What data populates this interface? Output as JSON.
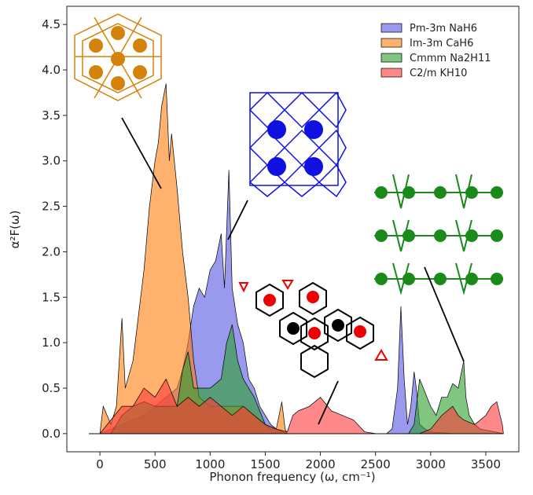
{
  "chart_data": {
    "type": "area",
    "xlabel": "Phonon frequency (ω, cm⁻¹)",
    "ylabel": "α²F(ω)",
    "xlim": [
      -300,
      3800
    ],
    "ylim": [
      -0.2,
      4.7
    ],
    "xticks": [
      0,
      500,
      1000,
      1500,
      2000,
      2500,
      3000,
      3500
    ],
    "yticks": [
      {
        "value": 0,
        "label": "0.0"
      },
      0.5,
      {
        "value": 1,
        "label": "1.0"
      },
      1.5,
      {
        "value": 2,
        "label": "2.0"
      },
      2.5,
      {
        "value": 3,
        "label": "3.0"
      },
      3.5,
      {
        "value": 4,
        "label": "4.0"
      },
      4.5
    ],
    "legend": "upper right",
    "series": [
      {
        "name": "Pm-3m NaH6",
        "color": "#5555e3",
        "x": [
          -100,
          0,
          100,
          200,
          300,
          400,
          500,
          600,
          700,
          750,
          800,
          850,
          900,
          950,
          1000,
          1050,
          1100,
          1130,
          1170,
          1200,
          1250,
          1300,
          1350,
          1400,
          1450,
          1500,
          1550,
          1600,
          1650,
          1700,
          2600,
          2650,
          2700,
          2730,
          2760,
          2790,
          2820,
          2850,
          2870,
          2900,
          2950,
          3000,
          3100,
          3200,
          3660
        ],
        "values": [
          0,
          0,
          0.05,
          0.1,
          0.15,
          0.2,
          0.3,
          0.4,
          0.5,
          0.7,
          1.0,
          1.4,
          1.6,
          1.5,
          1.8,
          1.9,
          2.2,
          1.6,
          2.9,
          1.6,
          1.2,
          1.0,
          0.6,
          0.5,
          0.3,
          0.2,
          0.1,
          0.05,
          0,
          0,
          0,
          0.05,
          0.5,
          1.4,
          0.6,
          0.1,
          0.3,
          0.68,
          0.5,
          0.1,
          0.05,
          0.02,
          0.01,
          0,
          0
        ]
      },
      {
        "name": "Im-3m CaH6",
        "color": "#ff7f0e",
        "x": [
          -100,
          0,
          30,
          100,
          150,
          200,
          230,
          300,
          350,
          400,
          450,
          500,
          530,
          560,
          600,
          630,
          650,
          700,
          750,
          800,
          850,
          900,
          1000,
          1100,
          1200,
          1300,
          1400,
          1500,
          1550,
          1600,
          1650,
          1680,
          1700,
          1750
        ],
        "values": [
          0,
          0,
          0.3,
          0.1,
          0.3,
          1.27,
          0.5,
          0.8,
          1.3,
          1.8,
          2.5,
          3.0,
          3.2,
          3.6,
          3.85,
          3.0,
          3.3,
          2.7,
          2.0,
          1.5,
          0.8,
          0.4,
          0.3,
          0.3,
          0.3,
          0.3,
          0.2,
          0.1,
          0.05,
          0.05,
          0.35,
          0.05,
          0,
          0
        ]
      },
      {
        "name": "Cmmm Na2H11",
        "color": "#2ca02c",
        "x": [
          -100,
          100,
          200,
          300,
          400,
          500,
          600,
          700,
          750,
          800,
          850,
          900,
          1000,
          1100,
          1150,
          1200,
          1250,
          1300,
          1350,
          1400,
          1500,
          1600,
          1700,
          2800,
          2850,
          2900,
          3000,
          3050,
          3100,
          3150,
          3200,
          3250,
          3300,
          3320,
          3350,
          3400,
          3450,
          3660
        ],
        "values": [
          0,
          0,
          0.2,
          0.3,
          0.35,
          0.3,
          0.3,
          0.3,
          0.7,
          0.9,
          0.5,
          0.5,
          0.5,
          0.6,
          1.0,
          1.2,
          0.8,
          0.6,
          0.5,
          0.4,
          0.1,
          0.05,
          0,
          0,
          0.1,
          0.6,
          0.3,
          0.2,
          0.4,
          0.4,
          0.55,
          0.5,
          0.8,
          0.4,
          0.2,
          0.1,
          0.05,
          0
        ]
      },
      {
        "name": "C2/m KH10",
        "color": "#ff3939",
        "x": [
          -100,
          0,
          100,
          200,
          300,
          400,
          500,
          600,
          700,
          800,
          900,
          1000,
          1100,
          1200,
          1300,
          1400,
          1500,
          1600,
          1700,
          1750,
          1800,
          1900,
          2000,
          2100,
          2200,
          2300,
          2400,
          2500,
          2900,
          3000,
          3100,
          3200,
          3250,
          3300,
          3400,
          3500,
          3550,
          3600,
          3650,
          3660
        ],
        "values": [
          0,
          0,
          0.15,
          0.3,
          0.3,
          0.5,
          0.4,
          0.6,
          0.3,
          0.4,
          0.3,
          0.4,
          0.3,
          0.2,
          0.3,
          0.2,
          0.1,
          0.05,
          0.02,
          0.2,
          0.25,
          0.3,
          0.4,
          0.25,
          0.2,
          0.15,
          0.02,
          0,
          0,
          0.05,
          0.2,
          0.3,
          0.2,
          0.15,
          0.1,
          0.2,
          0.3,
          0.35,
          0.1,
          0
        ]
      }
    ]
  }
}
